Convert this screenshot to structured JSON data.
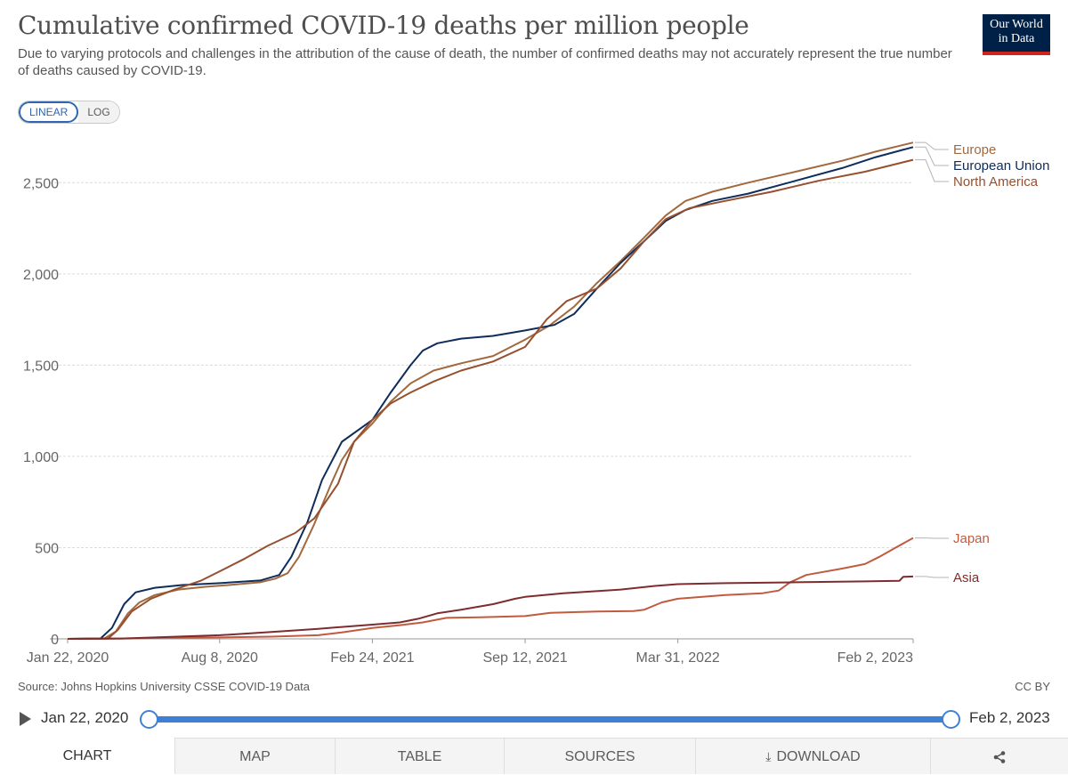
{
  "header": {
    "title": "Cumulative confirmed COVID-19 deaths per million people",
    "subtitle": "Due to varying protocols and challenges in the attribution of the cause of death, the number of confirmed deaths may not accurately represent the true number of deaths caused by COVID-19.",
    "logo_line1": "Our World",
    "logo_line2": "in Data"
  },
  "scale_toggle": {
    "linear_label": "LINEAR",
    "log_label": "LOG",
    "selected": "LINEAR"
  },
  "colors": {
    "Europe": "#a2693f",
    "European Union": "#0f2d5a",
    "North America": "#96502f",
    "Japan": "#c15b3f",
    "Asia": "#7d2d2d",
    "timeline": "#3f80d6",
    "logo_bg": "#002147",
    "logo_accent": "#ce261e"
  },
  "chart_data": {
    "type": "line",
    "title": "Cumulative confirmed COVID-19 deaths per million people",
    "xlabel": "",
    "ylabel": "",
    "x_ticks": [
      "Jan 22, 2020",
      "Aug 8, 2020",
      "Feb 24, 2021",
      "Sep 12, 2021",
      "Mar 31, 2022",
      "Feb 2, 2023"
    ],
    "y_ticks": [
      0,
      500,
      1000,
      1500,
      2000,
      2500
    ],
    "xlim": [
      "2020-01-22",
      "2023-02-02"
    ],
    "ylim": [
      0,
      2750
    ],
    "grid": true,
    "legend": "end-labels-right",
    "series": [
      {
        "name": "Europe",
        "points": [
          [
            "2020-01-22",
            0
          ],
          [
            "2020-03-10",
            2
          ],
          [
            "2020-03-25",
            40
          ],
          [
            "2020-04-10",
            140
          ],
          [
            "2020-04-25",
            200
          ],
          [
            "2020-05-15",
            240
          ],
          [
            "2020-06-15",
            270
          ],
          [
            "2020-07-20",
            285
          ],
          [
            "2020-08-20",
            295
          ],
          [
            "2020-09-30",
            310
          ],
          [
            "2020-10-20",
            330
          ],
          [
            "2020-11-05",
            360
          ],
          [
            "2020-11-20",
            450
          ],
          [
            "2020-12-10",
            630
          ],
          [
            "2021-01-01",
            850
          ],
          [
            "2021-01-15",
            980
          ],
          [
            "2021-01-31",
            1080
          ],
          [
            "2021-02-24",
            1180
          ],
          [
            "2021-03-20",
            1300
          ],
          [
            "2021-04-15",
            1400
          ],
          [
            "2021-05-15",
            1470
          ],
          [
            "2021-06-20",
            1510
          ],
          [
            "2021-08-01",
            1550
          ],
          [
            "2021-09-12",
            1640
          ],
          [
            "2021-10-15",
            1720
          ],
          [
            "2021-11-15",
            1820
          ],
          [
            "2021-12-15",
            1950
          ],
          [
            "2022-01-15",
            2070
          ],
          [
            "2022-02-15",
            2200
          ],
          [
            "2022-03-15",
            2320
          ],
          [
            "2022-04-10",
            2400
          ],
          [
            "2022-05-15",
            2450
          ],
          [
            "2022-07-01",
            2500
          ],
          [
            "2022-09-01",
            2560
          ],
          [
            "2022-11-01",
            2620
          ],
          [
            "2022-12-15",
            2670
          ],
          [
            "2023-02-02",
            2720
          ]
        ]
      },
      {
        "name": "European Union",
        "points": [
          [
            "2020-01-22",
            0
          ],
          [
            "2020-03-05",
            2
          ],
          [
            "2020-03-20",
            60
          ],
          [
            "2020-04-05",
            190
          ],
          [
            "2020-04-20",
            255
          ],
          [
            "2020-05-15",
            280
          ],
          [
            "2020-06-20",
            295
          ],
          [
            "2020-08-08",
            305
          ],
          [
            "2020-09-30",
            320
          ],
          [
            "2020-10-25",
            350
          ],
          [
            "2020-11-10",
            450
          ],
          [
            "2020-12-01",
            640
          ],
          [
            "2020-12-20",
            870
          ],
          [
            "2021-01-15",
            1080
          ],
          [
            "2021-02-24",
            1200
          ],
          [
            "2021-03-20",
            1350
          ],
          [
            "2021-04-15",
            1500
          ],
          [
            "2021-05-01",
            1580
          ],
          [
            "2021-05-20",
            1620
          ],
          [
            "2021-06-20",
            1645
          ],
          [
            "2021-08-01",
            1660
          ],
          [
            "2021-09-12",
            1690
          ],
          [
            "2021-10-20",
            1720
          ],
          [
            "2021-11-15",
            1780
          ],
          [
            "2021-12-15",
            1920
          ],
          [
            "2022-01-15",
            2060
          ],
          [
            "2022-02-15",
            2180
          ],
          [
            "2022-03-15",
            2290
          ],
          [
            "2022-04-10",
            2350
          ],
          [
            "2022-05-15",
            2400
          ],
          [
            "2022-07-01",
            2440
          ],
          [
            "2022-09-01",
            2510
          ],
          [
            "2022-11-01",
            2580
          ],
          [
            "2022-12-15",
            2640
          ],
          [
            "2023-02-02",
            2695
          ]
        ]
      },
      {
        "name": "North America",
        "points": [
          [
            "2020-01-22",
            0
          ],
          [
            "2020-03-15",
            2
          ],
          [
            "2020-03-28",
            50
          ],
          [
            "2020-04-15",
            150
          ],
          [
            "2020-05-10",
            220
          ],
          [
            "2020-06-10",
            270
          ],
          [
            "2020-07-15",
            320
          ],
          [
            "2020-08-08",
            370
          ],
          [
            "2020-09-10",
            440
          ],
          [
            "2020-10-10",
            510
          ],
          [
            "2020-11-15",
            580
          ],
          [
            "2020-12-10",
            660
          ],
          [
            "2021-01-10",
            850
          ],
          [
            "2021-01-31",
            1080
          ],
          [
            "2021-02-24",
            1200
          ],
          [
            "2021-03-20",
            1290
          ],
          [
            "2021-04-15",
            1350
          ],
          [
            "2021-05-15",
            1410
          ],
          [
            "2021-06-20",
            1470
          ],
          [
            "2021-08-01",
            1520
          ],
          [
            "2021-09-12",
            1600
          ],
          [
            "2021-10-10",
            1750
          ],
          [
            "2021-11-05",
            1850
          ],
          [
            "2021-12-15",
            1920
          ],
          [
            "2022-01-15",
            2030
          ],
          [
            "2022-02-15",
            2180
          ],
          [
            "2022-03-15",
            2300
          ],
          [
            "2022-04-15",
            2360
          ],
          [
            "2022-06-01",
            2400
          ],
          [
            "2022-08-01",
            2450
          ],
          [
            "2022-10-01",
            2510
          ],
          [
            "2022-12-01",
            2560
          ],
          [
            "2023-02-02",
            2625
          ]
        ]
      },
      {
        "name": "Japan",
        "points": [
          [
            "2020-01-22",
            0
          ],
          [
            "2020-04-10",
            2
          ],
          [
            "2020-06-01",
            7
          ],
          [
            "2020-08-08",
            8
          ],
          [
            "2020-10-15",
            12
          ],
          [
            "2020-12-15",
            20
          ],
          [
            "2021-01-15",
            35
          ],
          [
            "2021-02-24",
            60
          ],
          [
            "2021-04-01",
            75
          ],
          [
            "2021-05-01",
            90
          ],
          [
            "2021-06-01",
            115
          ],
          [
            "2021-07-15",
            118
          ],
          [
            "2021-09-12",
            125
          ],
          [
            "2021-10-15",
            143
          ],
          [
            "2021-12-15",
            150
          ],
          [
            "2022-02-01",
            152
          ],
          [
            "2022-02-15",
            160
          ],
          [
            "2022-03-10",
            200
          ],
          [
            "2022-03-31",
            220
          ],
          [
            "2022-06-01",
            240
          ],
          [
            "2022-07-20",
            250
          ],
          [
            "2022-08-10",
            265
          ],
          [
            "2022-08-25",
            310
          ],
          [
            "2022-09-15",
            350
          ],
          [
            "2022-11-01",
            385
          ],
          [
            "2022-12-01",
            410
          ],
          [
            "2022-12-20",
            450
          ],
          [
            "2023-01-10",
            500
          ],
          [
            "2023-02-02",
            553
          ]
        ]
      },
      {
        "name": "Asia",
        "points": [
          [
            "2020-01-22",
            0
          ],
          [
            "2020-04-01",
            2
          ],
          [
            "2020-06-01",
            10
          ],
          [
            "2020-08-08",
            20
          ],
          [
            "2020-10-15",
            38
          ],
          [
            "2020-12-15",
            55
          ],
          [
            "2021-02-24",
            78
          ],
          [
            "2021-04-01",
            90
          ],
          [
            "2021-04-25",
            110
          ],
          [
            "2021-05-20",
            140
          ],
          [
            "2021-06-20",
            160
          ],
          [
            "2021-08-01",
            190
          ],
          [
            "2021-08-30",
            220
          ],
          [
            "2021-09-12",
            230
          ],
          [
            "2021-11-01",
            250
          ],
          [
            "2022-01-15",
            270
          ],
          [
            "2022-03-01",
            290
          ],
          [
            "2022-03-31",
            300
          ],
          [
            "2022-06-01",
            305
          ],
          [
            "2022-09-01",
            310
          ],
          [
            "2022-12-01",
            315
          ],
          [
            "2023-01-15",
            318
          ],
          [
            "2023-01-20",
            340
          ],
          [
            "2023-02-02",
            342
          ]
        ]
      }
    ]
  },
  "footer": {
    "source": "Source: Johns Hopkins University CSSE COVID-19 Data",
    "license": "CC BY"
  },
  "timeline": {
    "start_label": "Jan 22, 2020",
    "end_label": "Feb 2, 2023",
    "start_fraction": 0,
    "end_fraction": 1
  },
  "tabs": [
    {
      "label": "CHART",
      "active": true
    },
    {
      "label": "MAP",
      "active": false
    },
    {
      "label": "TABLE",
      "active": false
    },
    {
      "label": "SOURCES",
      "active": false
    },
    {
      "label": "DOWNLOAD",
      "active": false,
      "icon": "download-icon"
    },
    {
      "label": "",
      "active": false,
      "icon": "share-icon"
    }
  ]
}
